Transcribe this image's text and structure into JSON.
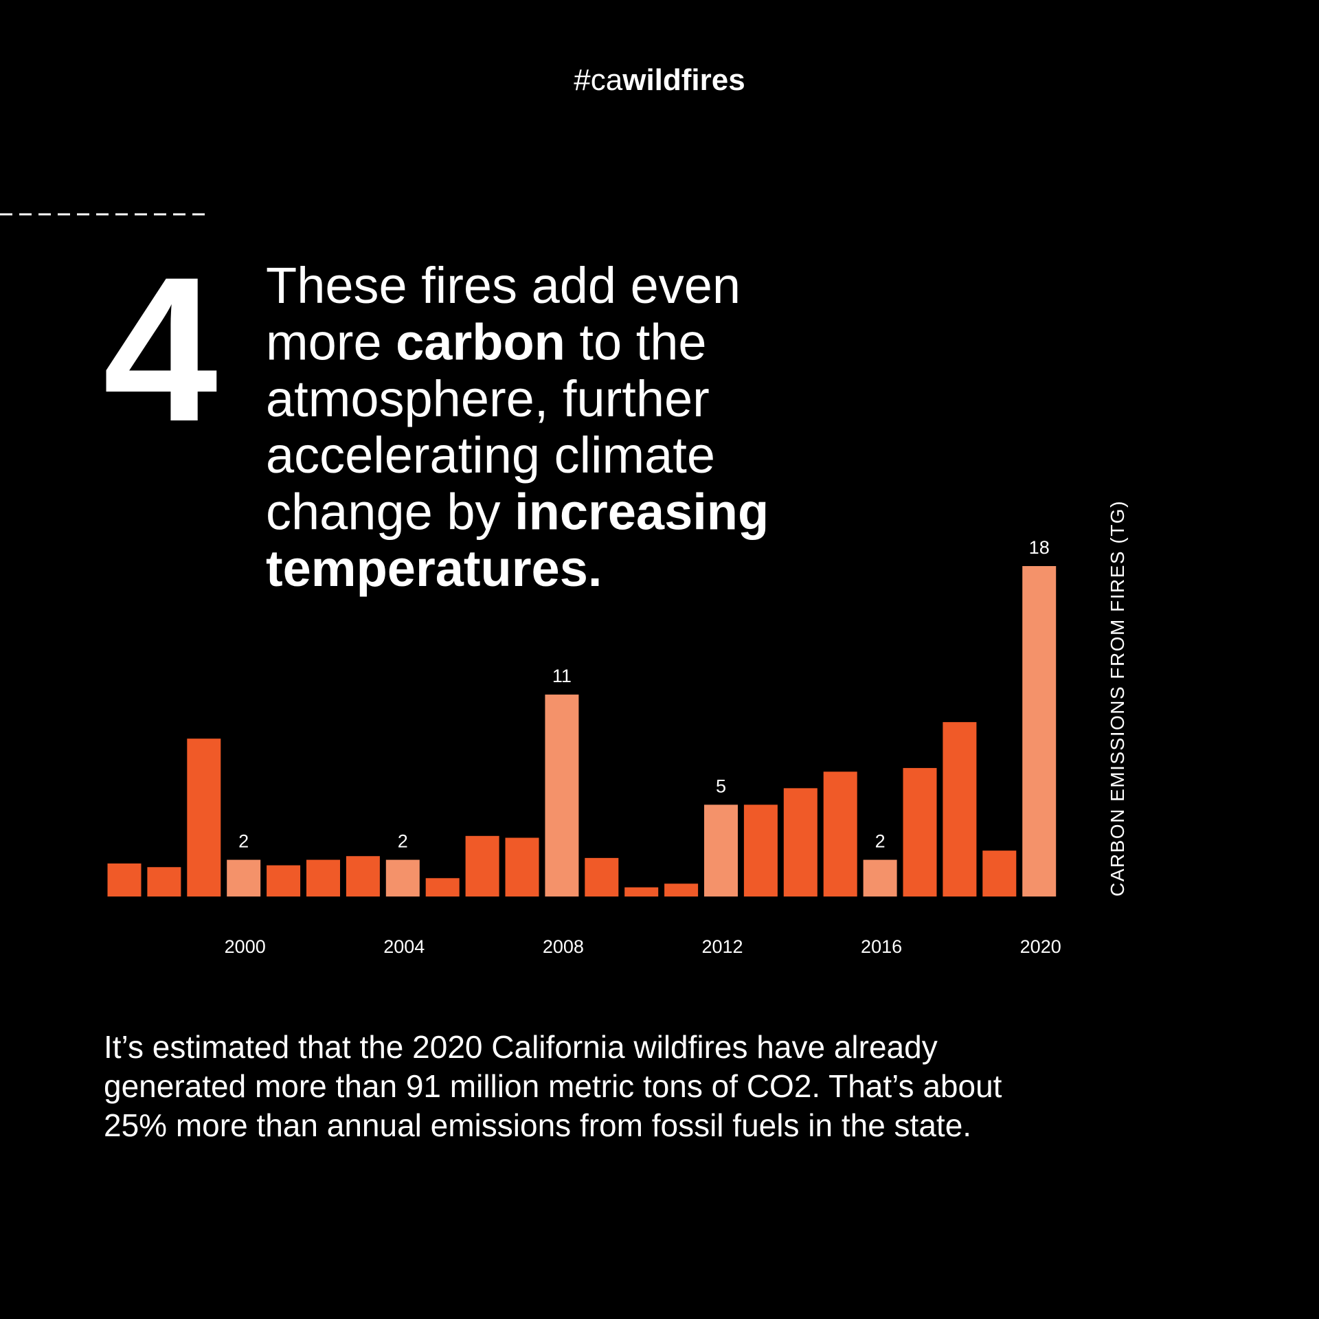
{
  "header": {
    "parts": [
      {
        "text": "#ca",
        "bold": false
      },
      {
        "text": "wildfires",
        "bold": true
      }
    ]
  },
  "number": "4",
  "heading": {
    "lines": [
      [
        {
          "text": "These fires add even",
          "bold": false
        }
      ],
      [
        {
          "text": "more ",
          "bold": false
        },
        {
          "text": "carbon",
          "bold": true
        },
        {
          "text": " to the",
          "bold": false
        }
      ],
      [
        {
          "text": "atmosphere, further",
          "bold": false
        }
      ],
      [
        {
          "text": "accelerating climate",
          "bold": false
        }
      ],
      [
        {
          "text": "change by ",
          "bold": false
        },
        {
          "text": "increasing",
          "bold": true
        }
      ],
      [
        {
          "text": "temperatures.",
          "bold": true
        }
      ]
    ]
  },
  "chart_data": {
    "type": "bar",
    "y_label": "CARBON EMISSIONS FROM FIRES (TG)",
    "categories": [
      null,
      null,
      null,
      "2000",
      null,
      null,
      null,
      "2004",
      null,
      null,
      null,
      "2008",
      null,
      null,
      null,
      "2012",
      null,
      null,
      null,
      "2016",
      null,
      null,
      null,
      "2020"
    ],
    "values": [
      1.8,
      1.6,
      8.6,
      2,
      1.7,
      2.0,
      2.2,
      2,
      1.0,
      3.3,
      3.2,
      11,
      2.1,
      0.5,
      0.7,
      5,
      5.0,
      5.9,
      6.8,
      2,
      7.0,
      9.5,
      2.5,
      18
    ],
    "value_labels": [
      null,
      null,
      null,
      "2",
      null,
      null,
      null,
      "2",
      null,
      null,
      null,
      "11",
      null,
      null,
      null,
      "5",
      null,
      null,
      null,
      "2",
      null,
      null,
      null,
      "18"
    ],
    "colors": [
      "#f05a28",
      "#f05a28",
      "#f05a28",
      "#f4926a",
      "#f05a28",
      "#f05a28",
      "#f05a28",
      "#f4926a",
      "#f05a28",
      "#f05a28",
      "#f05a28",
      "#f4926a",
      "#f05a28",
      "#f05a28",
      "#f05a28",
      "#f4926a",
      "#f05a28",
      "#f05a28",
      "#f05a28",
      "#f4926a",
      "#f05a28",
      "#f05a28",
      "#f05a28",
      "#f4926a"
    ],
    "ylim": [
      0,
      18
    ]
  },
  "body": {
    "lines": [
      "It’s estimated that the 2020 California wildfires have already",
      "generated more than 91 million metric tons of CO2. That’s about",
      "25% more than annual emissions from fossil fuels in the state."
    ]
  }
}
